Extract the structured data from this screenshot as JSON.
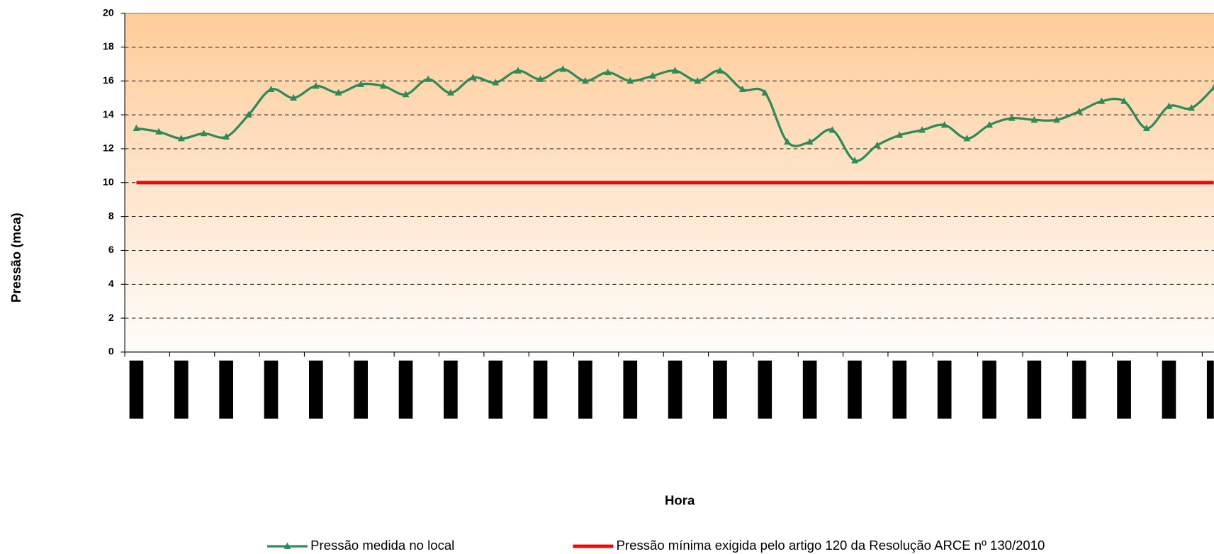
{
  "chart_data": {
    "type": "line",
    "y_label": "Pressão (mca)",
    "x_label": "Hora",
    "categories": [
      null,
      null,
      null,
      null,
      null,
      null,
      null,
      null,
      null,
      null,
      null,
      null,
      null,
      null,
      null,
      null,
      null,
      null,
      null,
      null,
      null,
      null,
      null,
      null,
      null,
      null,
      null,
      null,
      null,
      null,
      null,
      null,
      null,
      null,
      null,
      null,
      null,
      null,
      null,
      null,
      null,
      null,
      null,
      null,
      null,
      null,
      null,
      null,
      null
    ],
    "series": [
      {
        "name": "Pressão medida no local",
        "color": "#2e8b57",
        "marker": "triangle",
        "values": [
          13.2,
          13.0,
          12.6,
          12.9,
          12.7,
          14.0,
          15.5,
          15.0,
          15.7,
          15.3,
          15.8,
          15.7,
          15.2,
          16.1,
          15.3,
          16.2,
          15.9,
          16.6,
          16.1,
          16.7,
          16.0,
          16.5,
          16.0,
          16.3,
          16.6,
          16.0,
          16.6,
          15.5,
          15.3,
          12.4,
          12.4,
          13.1,
          11.3,
          12.2,
          12.8,
          13.1,
          13.4,
          12.6,
          13.4,
          13.8,
          13.7,
          13.7,
          14.2,
          14.8,
          14.8,
          13.2,
          14.5,
          14.4,
          15.6
        ]
      },
      {
        "name": "Pressão mínima exigida pelo artigo 120 da Resolução ARCE nº 130/2010",
        "color": "#ff0000",
        "values": [
          10,
          10,
          10,
          10,
          10,
          10,
          10,
          10,
          10,
          10,
          10,
          10,
          10,
          10,
          10,
          10,
          10,
          10,
          10,
          10,
          10,
          10,
          10,
          10,
          10,
          10,
          10,
          10,
          10,
          10,
          10,
          10,
          10,
          10,
          10,
          10,
          10,
          10,
          10,
          10,
          10,
          10,
          10,
          10,
          10,
          10,
          10,
          10,
          10
        ]
      }
    ],
    "ylim": [
      0,
      20
    ],
    "yticks": [
      0,
      2,
      4,
      6,
      8,
      10,
      12,
      14,
      16,
      18,
      20
    ],
    "grid": true
  }
}
